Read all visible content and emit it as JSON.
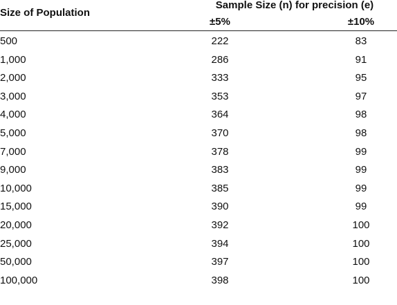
{
  "table": {
    "header": {
      "population": "Size of Population",
      "sample": "Sample Size (n) for precision (e)",
      "p5": "±5%",
      "p10": "±10%"
    },
    "rows": [
      [
        "500",
        "222",
        "83"
      ],
      [
        "1,000",
        "286",
        "91"
      ],
      [
        "2,000",
        "333",
        "95"
      ],
      [
        "3,000",
        "353",
        "97"
      ],
      [
        "4,000",
        "364",
        "98"
      ],
      [
        "5,000",
        "370",
        "98"
      ],
      [
        "7,000",
        "378",
        "99"
      ],
      [
        "9,000",
        "383",
        "99"
      ],
      [
        "10,000",
        "385",
        "99"
      ],
      [
        "15,000",
        "390",
        "99"
      ],
      [
        "20,000",
        "392",
        "100"
      ],
      [
        "25,000",
        "394",
        "100"
      ],
      [
        "50,000",
        "397",
        "100"
      ],
      [
        "100,000",
        "398",
        "100"
      ]
    ]
  }
}
